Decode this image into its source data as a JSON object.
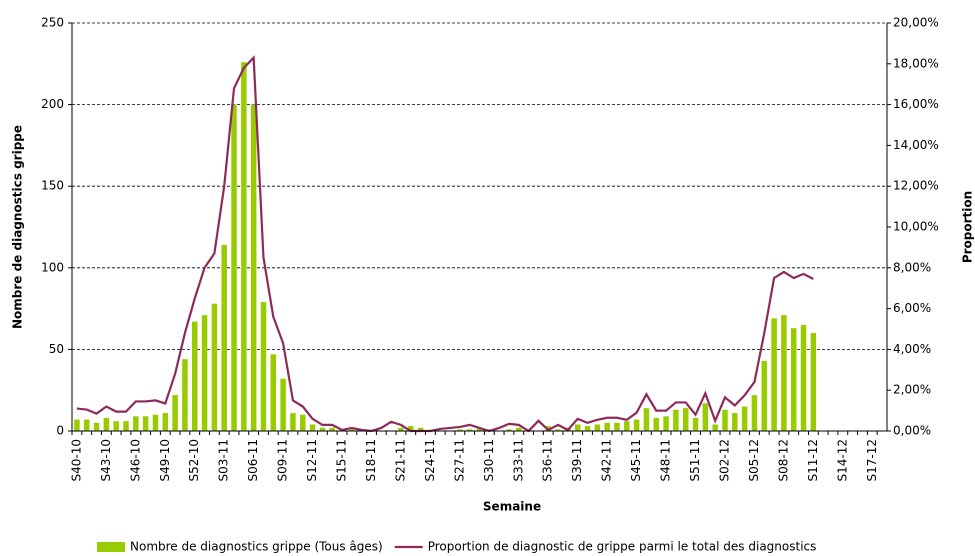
{
  "chart_data": {
    "type": "bar",
    "xlabel": "Semaine",
    "ylabel": "Nombre de diagnostics grippe",
    "y2label": "Proportion",
    "categories": [
      "S40-10",
      null,
      null,
      "S43-10",
      null,
      null,
      "S46-10",
      null,
      null,
      "S49-10",
      null,
      null,
      "S52-10",
      null,
      null,
      "S03-11",
      null,
      null,
      "S06-11",
      null,
      null,
      "S09-11",
      null,
      null,
      "S12-11",
      null,
      null,
      "S15-11",
      null,
      null,
      "S18-11",
      null,
      null,
      "S21-11",
      null,
      null,
      "S24-11",
      null,
      null,
      "S27-11",
      null,
      null,
      "S30-11",
      null,
      null,
      "S33-11",
      null,
      null,
      "S36-11",
      null,
      null,
      "S39-11",
      null,
      null,
      "S42-11",
      null,
      null,
      "S45-11",
      null,
      null,
      "S48-11",
      null,
      null,
      "S51-11",
      null,
      null,
      "S02-12",
      null,
      null,
      "S05-12",
      null,
      null,
      "S08-12",
      null,
      null,
      "S11-12",
      null,
      null,
      "S14-12",
      null,
      null,
      "S17-12",
      null
    ],
    "series": [
      {
        "name": "Nombre de diagnostics grippe (Tous âges)",
        "type": "bar",
        "color": "#99cc00",
        "values": [
          7,
          7,
          5,
          8,
          6,
          6,
          9,
          9,
          10,
          11,
          22,
          44,
          67,
          71,
          78,
          114,
          200,
          226,
          200,
          79,
          47,
          32,
          11,
          10,
          4,
          2,
          2,
          1,
          1,
          0,
          0,
          0,
          0,
          2,
          3,
          2,
          0,
          0,
          0,
          1,
          1,
          2,
          1,
          0,
          1,
          2,
          1,
          0,
          3,
          1,
          2,
          4,
          3,
          4,
          5,
          5,
          6,
          7,
          14,
          8,
          9,
          13,
          14,
          8,
          17,
          4,
          13,
          11,
          15,
          22,
          43,
          69,
          71,
          63,
          65,
          60,
          null,
          null,
          null,
          null,
          null,
          null,
          null
        ]
      },
      {
        "name": "Proportion de diagnostic de grippe parmi le total des diagnostics",
        "type": "line",
        "color": "#8e2a5b",
        "axis": "y2",
        "values": [
          1.1,
          1.05,
          0.85,
          1.2,
          0.95,
          0.95,
          1.45,
          1.45,
          1.5,
          1.35,
          2.8,
          4.8,
          6.5,
          8.0,
          8.7,
          12,
          16.8,
          17.8,
          18.3,
          8.5,
          5.6,
          4.3,
          1.5,
          1.2,
          0.6,
          0.3,
          0.3,
          0.05,
          0.15,
          0.05,
          0,
          0.15,
          0.45,
          0.3,
          0,
          0,
          0,
          0.1,
          0.15,
          0.2,
          0.3,
          0.15,
          0,
          0.15,
          0.35,
          0.3,
          0,
          0.5,
          0.05,
          0.3,
          0.05,
          0.6,
          0.4,
          0.55,
          0.65,
          0.65,
          0.55,
          0.9,
          1.8,
          1.0,
          1.0,
          1.4,
          1.4,
          0.8,
          1.85,
          0.5,
          1.65,
          1.25,
          1.75,
          2.4,
          4.8,
          7.5,
          7.8,
          7.5,
          7.7,
          7.45,
          null,
          null,
          null,
          null,
          null,
          null,
          null
        ]
      }
    ],
    "ylim": [
      0,
      250
    ],
    "yticks": [
      0,
      50,
      100,
      150,
      200,
      250
    ],
    "y2lim": [
      0,
      20
    ],
    "y2ticks": [
      {
        "value": 0,
        "label": "0,00%"
      },
      {
        "value": 2,
        "label": "2,00%"
      },
      {
        "value": 4,
        "label": "4,00%"
      },
      {
        "value": 6,
        "label": "6,00%"
      },
      {
        "value": 8,
        "label": "8,00%"
      },
      {
        "value": 10,
        "label": "10,00%"
      },
      {
        "value": 12,
        "label": "12,00%"
      },
      {
        "value": 14,
        "label": "14,00%"
      },
      {
        "value": 16,
        "label": "16,00%"
      },
      {
        "value": 18,
        "label": "18,00%"
      },
      {
        "value": 20,
        "label": "20,00%"
      }
    ],
    "grid": true,
    "legend": "bottom"
  }
}
